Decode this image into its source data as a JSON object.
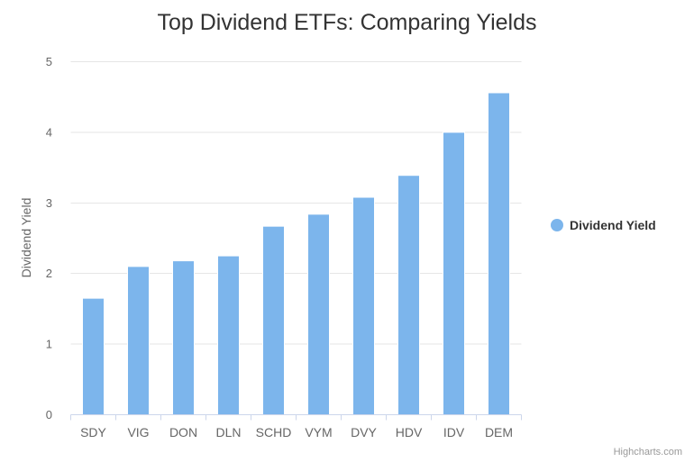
{
  "chart_data": {
    "type": "bar",
    "title": "Top Dividend ETFs: Comparing Yields",
    "categories": [
      "SDY",
      "VIG",
      "DON",
      "DLN",
      "SCHD",
      "VYM",
      "DVY",
      "HDV",
      "IDV",
      "DEM"
    ],
    "series": [
      {
        "name": "Dividend Yield",
        "values": [
          1.65,
          2.1,
          2.18,
          2.25,
          2.67,
          2.84,
          3.08,
          3.39,
          4.0,
          4.56
        ]
      }
    ],
    "xlabel": "",
    "ylabel": "Dividend Yield",
    "ylim": [
      0,
      5
    ],
    "yticks": [
      0,
      1,
      2,
      3,
      4,
      5
    ],
    "grid": true,
    "legend_position": "right-middle",
    "colors": {
      "bar": "#7cb5ec",
      "bar_border": "#ffffff",
      "grid": "#e6e6e6",
      "axis_line": "#ccd6eb",
      "tick": "#ccd6eb",
      "title_text": "#333333",
      "axis_text": "#666666",
      "legend_text": "#333333",
      "credits_text": "#999999"
    }
  },
  "credits": {
    "label": "Highcharts.com"
  }
}
